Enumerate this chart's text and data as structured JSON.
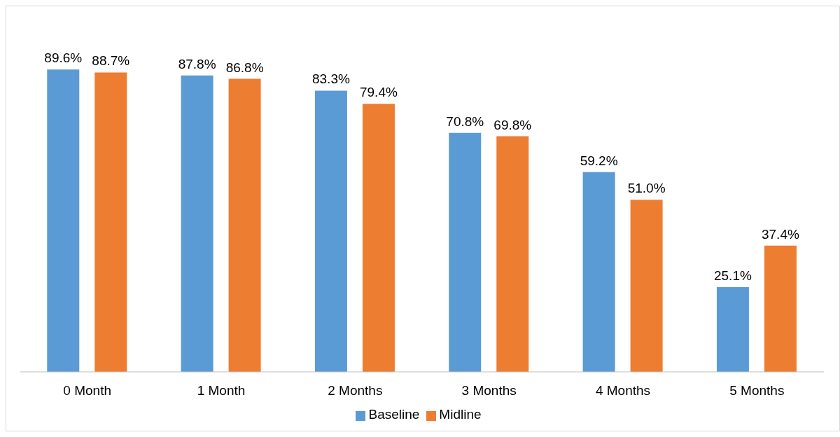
{
  "chart_data": {
    "type": "bar",
    "categories": [
      "0 Month",
      "1 Month",
      "2 Months",
      "3 Months",
      "4 Months",
      "5 Months"
    ],
    "series": [
      {
        "name": "Baseline",
        "color": "#5b9bd5",
        "values": [
          89.6,
          87.8,
          83.3,
          70.8,
          59.2,
          25.1
        ],
        "value_labels": [
          "89.6%",
          "87.8%",
          "83.3%",
          "70.8%",
          "59.2%",
          "25.1%"
        ]
      },
      {
        "name": "Midline",
        "color": "#ed7d31",
        "values": [
          88.7,
          86.8,
          79.4,
          69.8,
          51.0,
          37.4
        ],
        "value_labels": [
          "88.7%",
          "86.8%",
          "79.4%",
          "69.8%",
          "51.0%",
          "37.4%"
        ]
      }
    ],
    "tick_labels": "x",
    "grid": false,
    "legend": "bottom"
  }
}
